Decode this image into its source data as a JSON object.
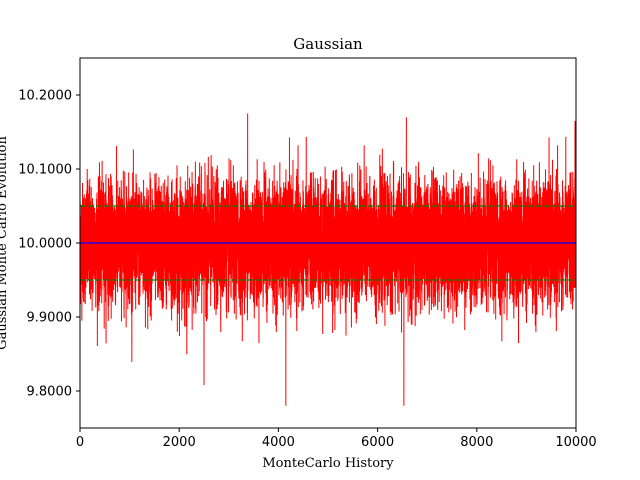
{
  "chart_data": {
    "type": "line",
    "title": "Gaussian",
    "xlabel": "MonteCarlo History",
    "ylabel": "Gaussian Monte Carlo Evolution",
    "xlim": [
      0,
      10000
    ],
    "ylim": [
      9.75,
      10.25
    ],
    "x_ticks": [
      "0",
      "2000",
      "4000",
      "6000",
      "8000",
      "10000"
    ],
    "y_ticks": [
      "9.8000",
      "9.9000",
      "10.0000",
      "10.1000",
      "10.2000"
    ],
    "grid": false,
    "n_points": 10000,
    "series": [
      {
        "color": "#ff0000",
        "typical_band": [
          9.89,
          10.11
        ],
        "max_value": 10.175,
        "min_value": 9.78,
        "notable_points": [
          {
            "x": 3380,
            "y": 10.175
          },
          {
            "x": 4150,
            "y": 9.78
          },
          {
            "x": 6530,
            "y": 9.78
          },
          {
            "x": 2500,
            "y": 9.808
          },
          {
            "x": 9980,
            "y": 10.165
          }
        ]
      }
    ],
    "reference_lines": [
      {
        "y": 10.0,
        "color": "#0000ff",
        "style": "solid"
      },
      {
        "y": 10.05,
        "color": "#008000",
        "style": "dashed"
      },
      {
        "y": 9.95,
        "color": "#008000",
        "style": "dashed"
      }
    ]
  }
}
